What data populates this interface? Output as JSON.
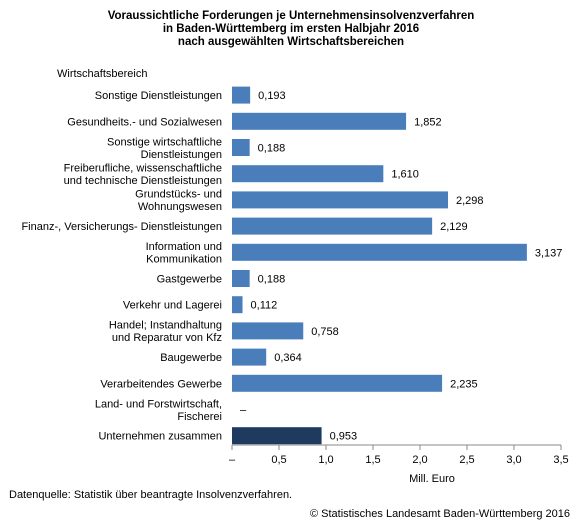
{
  "chart_data": {
    "type": "bar",
    "orientation": "horizontal",
    "title_lines": [
      "Voraussichtliche Forderungen je Unternehmensinsolvenzverfahren",
      "in Baden-Württemberg im ersten Halbjahr 2016",
      "nach ausgewählten Wirtschaftsbereichen"
    ],
    "category_axis_label": "Wirtschaftsbereich",
    "xlabel": "Mill. Euro",
    "xlim": [
      0,
      3.5
    ],
    "xticks": [
      "–",
      "0,5",
      "1,0",
      "1,5",
      "2,0",
      "2,5",
      "3,0",
      "3,5"
    ],
    "grid": false,
    "categories": [
      "Sonstige Dienstleistungen",
      "Gesundheits.- und Sozialwesen",
      "Sonstige wirtschaftliche Dienstleistungen",
      "Freiberufliche, wissenschaftliche und technische Dienstleistungen",
      "Grundstücks- und Wohnungswesen",
      "Finanz-, Versicherungs- Dienstleistungen",
      "Information und Kommunikation",
      "Gastgewerbe",
      "Verkehr und Lagerei",
      "Handel; Instandhaltung und Reparatur von Kfz",
      "Baugewerbe",
      "Verarbeitendes Gewerbe",
      "Land- und Forstwirtschaft, Fischerei",
      "Unternehmen zusammen"
    ],
    "category_label_lines": [
      [
        "Sonstige Dienstleistungen"
      ],
      [
        "Gesundheits.- und Sozialwesen"
      ],
      [
        "Sonstige wirtschaftliche",
        "Dienstleistungen"
      ],
      [
        "Freiberufliche, wissenschaftliche",
        "und technische Dienstleistungen"
      ],
      [
        "Grundstücks- und",
        "Wohnungswesen"
      ],
      [
        "Finanz-, Versicherungs- Dienstleistungen"
      ],
      [
        "Information und",
        "Kommunikation"
      ],
      [
        "Gastgewerbe"
      ],
      [
        "Verkehr und Lagerei"
      ],
      [
        "Handel; Instandhaltung",
        "und Reparatur von Kfz"
      ],
      [
        "Baugewerbe"
      ],
      [
        "Verarbeitendes Gewerbe"
      ],
      [
        "Land- und Forstwirtschaft,",
        "Fischerei"
      ],
      [
        "Unternehmen zusammen"
      ]
    ],
    "values": [
      0.193,
      1.852,
      0.188,
      1.61,
      2.298,
      2.129,
      3.137,
      0.188,
      0.112,
      0.758,
      0.364,
      2.235,
      null,
      0.953
    ],
    "value_labels": [
      "0,193",
      "1,852",
      "0,188",
      "1,610",
      "2,298",
      "2,129",
      "3,137",
      "0,188",
      "0,112",
      "0,758",
      "0,364",
      "2,235",
      "–",
      "0,953"
    ],
    "bar_color": "#4a7ebb",
    "total_bar_color": "#1f3a5f"
  },
  "footer": {
    "source": "Datenquelle:  Statistik über beantragte Insolvenzverfahren.",
    "copyright": "© Statistisches Landesamt Baden-Württemberg 2016"
  }
}
